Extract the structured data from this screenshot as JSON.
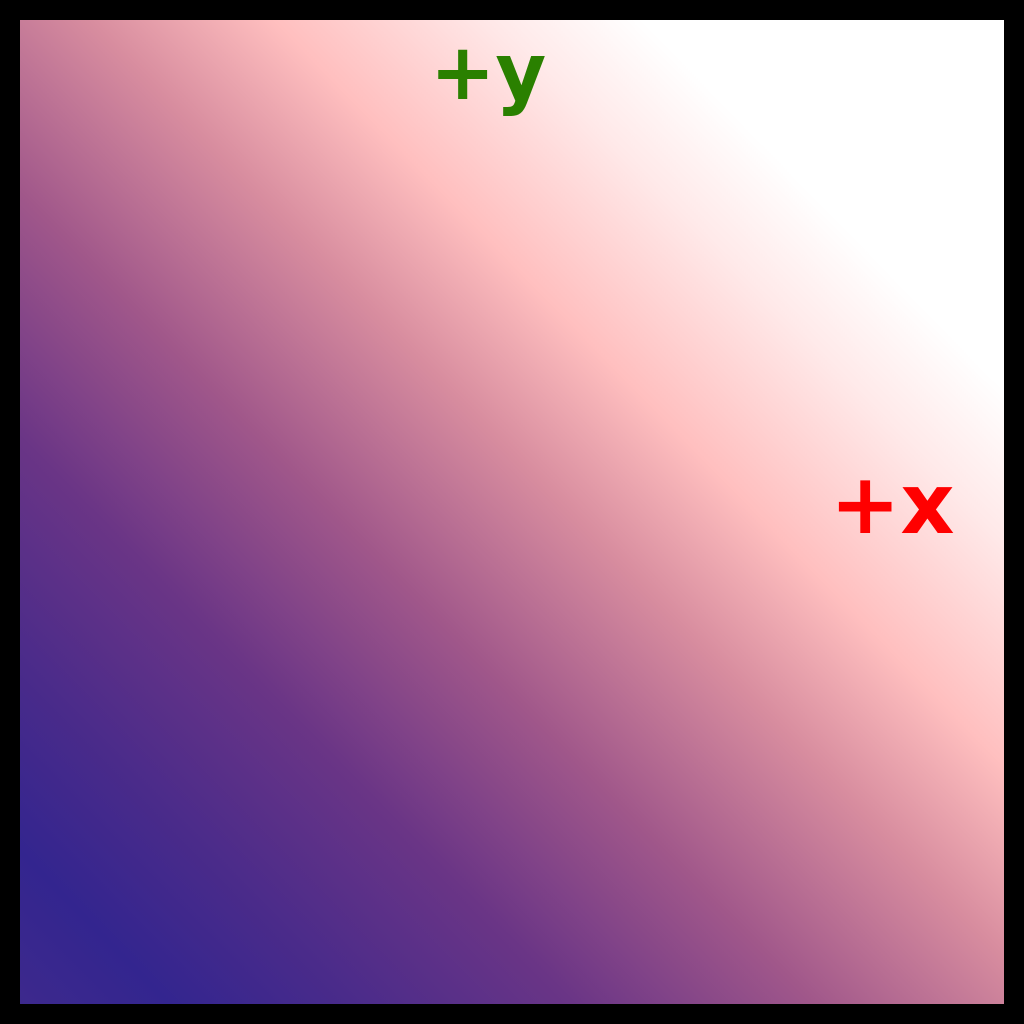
{
  "labels": {
    "y_axis": "+y",
    "x_axis": "+x"
  },
  "colors": {
    "frame": "#000000",
    "y_label": "#2a8000",
    "x_label": "#ff0000",
    "gradient_stops": [
      {
        "offset": 0.0,
        "color": "#3f2a8c"
      },
      {
        "offset": 0.1,
        "color": "#33258f"
      },
      {
        "offset": 0.2,
        "color": "#4a2b8a"
      },
      {
        "offset": 0.32,
        "color": "#6a3586"
      },
      {
        "offset": 0.45,
        "color": "#a0578a"
      },
      {
        "offset": 0.58,
        "color": "#d88d9f"
      },
      {
        "offset": 0.68,
        "color": "#ffbfbf"
      },
      {
        "offset": 0.8,
        "color": "#ffe9e9"
      },
      {
        "offset": 0.88,
        "color": "#ffffff"
      },
      {
        "offset": 1.0,
        "color": "#ffffff"
      }
    ]
  }
}
